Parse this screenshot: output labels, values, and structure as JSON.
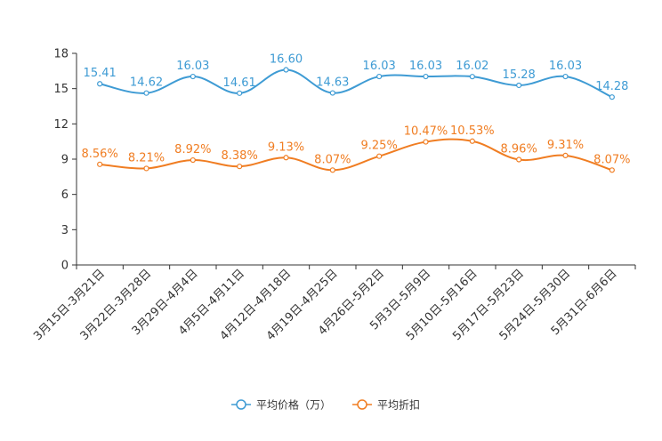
{
  "chart_data": {
    "type": "line",
    "categories": [
      "3月15日-3月21日",
      "3月22日-3月28日",
      "3月29日-4月4日",
      "4月5日-4月11日",
      "4月12日-4月18日",
      "4月19日-4月25日",
      "4月26日-5月2日",
      "5月3日-5月9日",
      "5月10日-5月16日",
      "5月17日-5月23日",
      "5月24日-5月30日",
      "5月31日-6月6日"
    ],
    "ylim": [
      0,
      18
    ],
    "yticks": [
      0,
      3,
      6,
      9,
      12,
      15,
      18
    ],
    "ytick_labels": [
      "0",
      "3",
      "6",
      "9",
      "12",
      "15",
      "18"
    ],
    "series": [
      {
        "name": "平均价格（万）",
        "color": "#3e9bd4",
        "values": [
          15.41,
          14.62,
          16.03,
          14.61,
          16.6,
          14.63,
          16.03,
          16.03,
          16.02,
          15.28,
          16.03,
          14.28
        ],
        "labels": [
          "15.41",
          "14.62",
          "16.03",
          "14.61",
          "16.60",
          "14.63",
          "16.03",
          "16.03",
          "16.02",
          "15.28",
          "16.03",
          "14.28"
        ]
      },
      {
        "name": "平均折扣",
        "color": "#f07d22",
        "values": [
          8.56,
          8.21,
          8.92,
          8.38,
          9.13,
          8.07,
          9.25,
          10.47,
          10.53,
          8.96,
          9.31,
          8.07
        ],
        "labels": [
          "8.56%",
          "8.21%",
          "8.92%",
          "8.38%",
          "9.13%",
          "8.07%",
          "9.25%",
          "10.47%",
          "10.53%",
          "8.96%",
          "9.31%",
          "8.07%"
        ]
      }
    ],
    "legend_position": "bottom"
  }
}
